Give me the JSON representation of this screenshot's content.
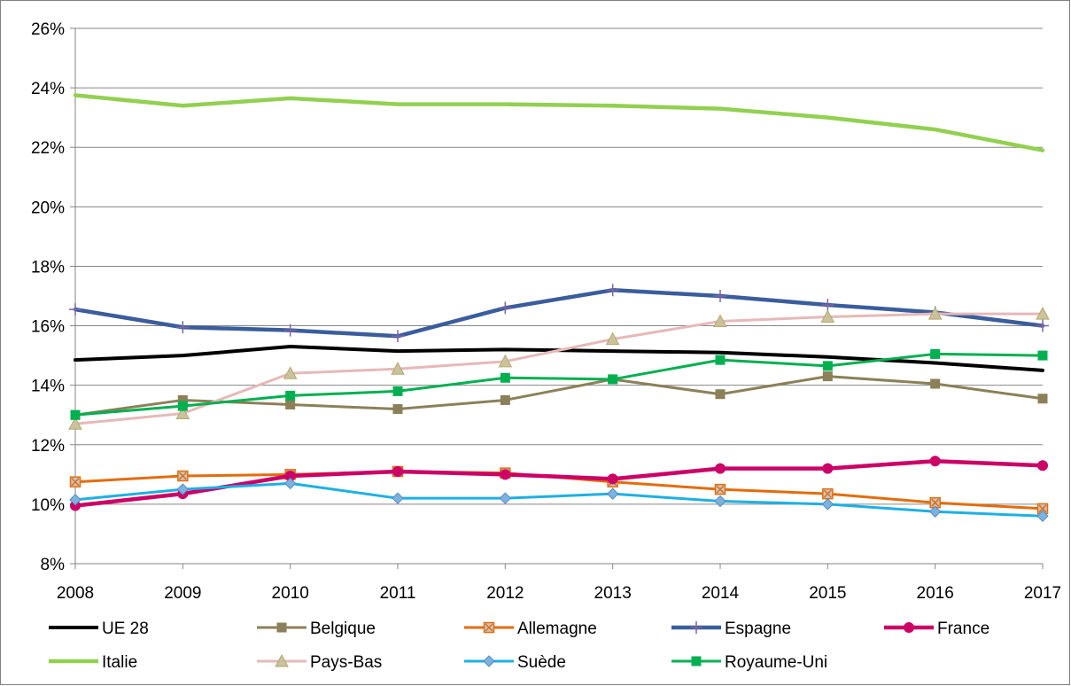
{
  "chart_data": {
    "type": "line",
    "title": "",
    "xlabel": "",
    "ylabel": "",
    "x": [
      "2008",
      "2009",
      "2010",
      "2011",
      "2012",
      "2013",
      "2014",
      "2015",
      "2016",
      "2017"
    ],
    "ylim": [
      8,
      26
    ],
    "yticks": [
      8,
      10,
      12,
      14,
      16,
      18,
      20,
      22,
      24,
      26
    ],
    "ytick_labels": [
      "8%",
      "10%",
      "12%",
      "14%",
      "16%",
      "18%",
      "20%",
      "22%",
      "24%",
      "26%"
    ],
    "grid": "horizontal",
    "legend_position": "bottom",
    "series": [
      {
        "name": "UE 28",
        "color": "#000000",
        "marker": "none",
        "values": [
          14.85,
          15.0,
          15.3,
          15.15,
          15.2,
          15.15,
          15.1,
          14.95,
          14.75,
          14.5
        ]
      },
      {
        "name": "Belgique",
        "color": "#8B8058",
        "marker": "square",
        "values": [
          13.0,
          13.5,
          13.35,
          13.2,
          13.5,
          14.2,
          13.7,
          14.3,
          14.05,
          13.55
        ]
      },
      {
        "name": "Allemagne",
        "color": "#E46C0A",
        "marker": "square-x",
        "values": [
          10.75,
          10.95,
          11.0,
          11.1,
          11.05,
          10.75,
          10.5,
          10.35,
          10.05,
          9.85
        ]
      },
      {
        "name": "Espagne",
        "color": "#3A5D9C",
        "marker": "plus",
        "values": [
          16.55,
          15.95,
          15.85,
          15.65,
          16.6,
          17.2,
          17.0,
          16.7,
          16.45,
          16.0
        ]
      },
      {
        "name": "France",
        "color": "#CC0066",
        "marker": "circle",
        "values": [
          9.95,
          10.35,
          10.95,
          11.1,
          11.0,
          10.85,
          11.2,
          11.2,
          11.45,
          11.3
        ]
      },
      {
        "name": "Italie",
        "color": "#92D050",
        "marker": "none",
        "values": [
          23.75,
          23.4,
          23.65,
          23.45,
          23.45,
          23.4,
          23.3,
          23.0,
          22.6,
          21.9
        ]
      },
      {
        "name": "Pays-Bas",
        "color": "#E6B9B8",
        "marker": "triangle",
        "values": [
          12.7,
          13.05,
          14.4,
          14.55,
          14.8,
          15.55,
          16.15,
          16.3,
          16.4,
          16.4
        ]
      },
      {
        "name": "Suède",
        "color": "#1CB0E6",
        "marker": "diamond",
        "values": [
          10.15,
          10.5,
          10.7,
          10.2,
          10.2,
          10.35,
          10.1,
          10.0,
          9.75,
          9.6
        ]
      },
      {
        "name": "Royaume-Uni",
        "color": "#00B050",
        "marker": "square",
        "values": [
          13.0,
          13.3,
          13.65,
          13.8,
          14.25,
          14.2,
          14.85,
          14.65,
          15.05,
          15.0
        ]
      }
    ]
  }
}
